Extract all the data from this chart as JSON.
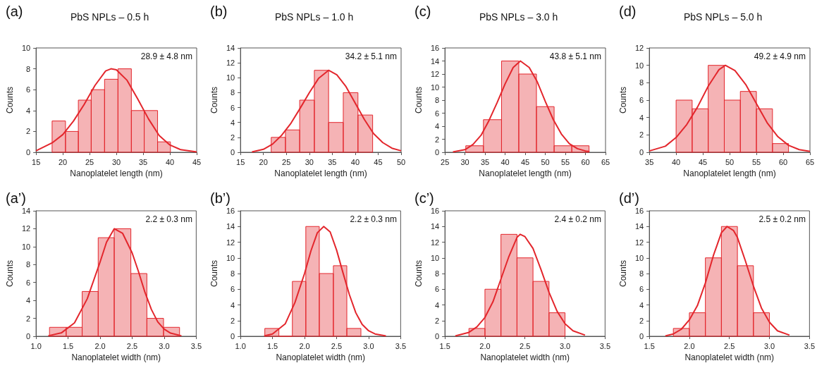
{
  "chart_data": [
    {
      "type": "histogram",
      "title": "PbS NPLs – 0.5 h",
      "xlabel": "Nanoplatelet length (nm)",
      "ylabel": "Counts",
      "annotations": [
        "(a)",
        "28.9 ± 4.8 nm"
      ],
      "color": "#e3262c",
      "bins": [
        18,
        20.5,
        22.9,
        25.3,
        27.8,
        30.3,
        32.8,
        35.2,
        37.7,
        40.1
      ],
      "values": [
        3,
        2,
        5,
        6,
        7,
        8,
        4,
        4,
        1
      ],
      "xlim": [
        15,
        45
      ],
      "xticks": [
        15,
        20,
        25,
        30,
        35,
        40,
        45
      ],
      "ylim": [
        0,
        10
      ],
      "yticks": [
        0,
        2,
        4,
        6,
        8,
        10
      ],
      "series": [
        {
          "type": "line",
          "color": "#e3262c",
          "marker": "none",
          "x": [
            15,
            18,
            20,
            22,
            24,
            26,
            28,
            29,
            30,
            32,
            34,
            36,
            38,
            40,
            42,
            45
          ],
          "values": [
            0.15,
            0.9,
            1.7,
            3.0,
            4.6,
            6.4,
            7.8,
            8,
            7.9,
            6.9,
            5.1,
            3.2,
            1.6,
            0.7,
            0.25,
            0.03
          ]
        }
      ]
    },
    {
      "type": "histogram",
      "title": "PbS NPLs – 1.0 h",
      "xlabel": "Nanoplatelet length (nm)",
      "ylabel": "Counts",
      "annotations": [
        "(b)",
        "34.2 ± 5.1 nm"
      ],
      "color": "#e3262c",
      "bins": [
        21.7,
        24.8,
        27.9,
        31.1,
        34.2,
        37.4,
        40.6,
        43.8
      ],
      "values": [
        2,
        3,
        7,
        11,
        4,
        8,
        5
      ],
      "xlim": [
        15,
        50
      ],
      "xticks": [
        15,
        20,
        25,
        30,
        35,
        40,
        45,
        50
      ],
      "ylim": [
        0,
        14
      ],
      "yticks": [
        0,
        2,
        4,
        6,
        8,
        10,
        12,
        14
      ],
      "series": [
        {
          "type": "line",
          "color": "#e3262c",
          "marker": "none",
          "x": [
            17.5,
            20,
            22,
            24,
            26,
            28,
            30,
            32,
            34.2,
            36,
            38,
            40,
            42,
            44,
            46,
            48,
            50
          ],
          "values": [
            0.05,
            0.4,
            1.1,
            2.3,
            3.9,
            5.9,
            8.0,
            9.9,
            11,
            10.4,
            8.8,
            6.6,
            4.4,
            2.5,
            1.3,
            0.55,
            0.2
          ]
        }
      ]
    },
    {
      "type": "histogram",
      "title": "PbS NPLs – 3.0 h",
      "xlabel": "Nanoplatelet length (nm)",
      "ylabel": "Counts",
      "annotations": [
        "(c)",
        "43.8 ± 5.1 nm"
      ],
      "color": "#e3262c",
      "bins": [
        30.2,
        34.6,
        39.1,
        43.4,
        47.8,
        52.2,
        56.6,
        60.9
      ],
      "values": [
        1,
        5,
        14,
        12,
        7,
        1,
        1
      ],
      "xlim": [
        25,
        65
      ],
      "xticks": [
        25,
        30,
        35,
        40,
        45,
        50,
        55,
        60,
        65
      ],
      "ylim": [
        0,
        16
      ],
      "yticks": [
        0,
        2,
        4,
        6,
        8,
        10,
        12,
        14,
        16
      ],
      "series": [
        {
          "type": "line",
          "color": "#e3262c",
          "marker": "none",
          "x": [
            27,
            30,
            32,
            34,
            36,
            38,
            40,
            42,
            43.8,
            46,
            48,
            50,
            52,
            54,
            56,
            58,
            60,
            61
          ],
          "values": [
            0.05,
            0.4,
            1.2,
            2.6,
            4.9,
            7.6,
            10.5,
            13.0,
            14,
            13.0,
            10.8,
            7.8,
            5.0,
            2.8,
            1.3,
            0.55,
            0.2,
            0.1
          ]
        }
      ]
    },
    {
      "type": "histogram",
      "title": "PbS NPLs – 5.0 h",
      "xlabel": "Nanoplatelet length (nm)",
      "ylabel": "Counts",
      "annotations": [
        "(d)",
        "49.2 ± 4.9 nm"
      ],
      "color": "#e3262c",
      "bins": [
        40,
        43,
        46,
        49,
        52,
        55,
        58,
        61
      ],
      "values": [
        6,
        5,
        10,
        6,
        7,
        5,
        1
      ],
      "xlim": [
        35,
        65
      ],
      "xticks": [
        35,
        40,
        45,
        50,
        55,
        60,
        65
      ],
      "ylim": [
        0,
        12
      ],
      "yticks": [
        0,
        2,
        4,
        6,
        8,
        10,
        12
      ],
      "series": [
        {
          "type": "line",
          "color": "#e3262c",
          "marker": "none",
          "x": [
            35,
            38,
            40,
            42,
            44,
            46,
            48,
            49.2,
            51,
            53,
            55,
            57,
            59,
            61,
            63,
            65
          ],
          "values": [
            0.15,
            0.7,
            1.7,
            3.2,
            5.2,
            7.6,
            9.5,
            10,
            9.4,
            7.8,
            5.6,
            3.4,
            1.8,
            0.8,
            0.3,
            0.1
          ]
        }
      ]
    },
    {
      "type": "histogram",
      "xlabel": "Nanoplatelet width (nm)",
      "ylabel": "Counts",
      "annotations": [
        "(a’)",
        "2.2 ± 0.3 nm"
      ],
      "color": "#e3262c",
      "bins": [
        1.21,
        1.47,
        1.72,
        1.97,
        2.22,
        2.48,
        2.73,
        2.99,
        3.24
      ],
      "values": [
        1,
        1,
        5,
        11,
        12,
        7,
        2,
        1
      ],
      "xlim": [
        1,
        3.5
      ],
      "xticks": [
        {
          "value": 1,
          "label": "1.0"
        },
        1.5,
        {
          "value": 2,
          "label": "2.0"
        },
        2.5,
        {
          "value": 3,
          "label": "3.0"
        },
        3.5
      ],
      "ylim": [
        0,
        14
      ],
      "yticks": [
        0,
        2,
        4,
        6,
        8,
        10,
        12,
        14
      ],
      "series": [
        {
          "type": "line",
          "color": "#e3262c",
          "marker": "none",
          "x": [
            1.19,
            1.4,
            1.6,
            1.8,
            2.0,
            2.1,
            2.22,
            2.35,
            2.5,
            2.6,
            2.7,
            2.8,
            2.9,
            3.0,
            3.1,
            3.27
          ],
          "values": [
            0.05,
            0.4,
            1.5,
            4.2,
            8.3,
            10.5,
            12,
            11.5,
            9.3,
            7.2,
            4.9,
            3.0,
            1.6,
            0.8,
            0.35,
            0.05
          ]
        }
      ]
    },
    {
      "type": "histogram",
      "xlabel": "Nanoplatelet width (nm)",
      "ylabel": "Counts",
      "annotations": [
        "(b’)",
        "2.2 ± 0.3 nm"
      ],
      "color": "#e3262c",
      "bins": [
        1.38,
        1.6,
        1.81,
        2.02,
        2.23,
        2.45,
        2.66,
        2.88
      ],
      "values": [
        1,
        0,
        7,
        14,
        8,
        9,
        1
      ],
      "xlim": [
        1,
        3.5
      ],
      "xticks": [
        {
          "value": 1,
          "label": "1.0"
        },
        1.5,
        {
          "value": 2,
          "label": "2.0"
        },
        2.5,
        {
          "value": 3,
          "label": "3.0"
        },
        3.5
      ],
      "ylim": [
        0,
        16
      ],
      "yticks": [
        0,
        2,
        4,
        6,
        8,
        10,
        12,
        14,
        16
      ],
      "series": [
        {
          "type": "line",
          "color": "#e3262c",
          "marker": "none",
          "x": [
            1.37,
            1.5,
            1.7,
            1.85,
            2.0,
            2.1,
            2.2,
            2.3,
            2.4,
            2.5,
            2.6,
            2.7,
            2.8,
            2.9,
            3.0,
            3.1,
            3.27
          ],
          "values": [
            0.05,
            0.3,
            1.6,
            4.3,
            8.0,
            10.9,
            13.2,
            14,
            13.3,
            11.0,
            8.1,
            5.3,
            3.0,
            1.5,
            0.7,
            0.3,
            0.05
          ]
        }
      ]
    },
    {
      "type": "histogram",
      "xlabel": "Nanoplatelet width (nm)",
      "ylabel": "Counts",
      "annotations": [
        "(c’)",
        "2.4 ± 0.2 nm"
      ],
      "color": "#e3262c",
      "bins": [
        1.8,
        2.0,
        2.2,
        2.4,
        2.6,
        2.8,
        3.0
      ],
      "values": [
        1,
        6,
        13,
        10,
        7,
        3
      ],
      "xlim": [
        1.5,
        3.5
      ],
      "xticks": [
        1.5,
        {
          "value": 2,
          "label": "2.0"
        },
        2.5,
        {
          "value": 3,
          "label": "3.0"
        },
        3.5
      ],
      "ylim": [
        0,
        16
      ],
      "yticks": [
        0,
        2,
        4,
        6,
        8,
        10,
        12,
        14,
        16
      ],
      "series": [
        {
          "type": "line",
          "color": "#e3262c",
          "marker": "none",
          "x": [
            1.63,
            1.8,
            1.9,
            2.0,
            2.1,
            2.2,
            2.3,
            2.4,
            2.44,
            2.5,
            2.6,
            2.7,
            2.8,
            2.9,
            3.0,
            3.1,
            3.25
          ],
          "values": [
            0.05,
            0.5,
            1.2,
            2.4,
            4.4,
            7.3,
            10.2,
            12.6,
            13,
            12.7,
            11.2,
            8.5,
            5.6,
            3.2,
            1.6,
            0.7,
            0.15
          ]
        }
      ]
    },
    {
      "type": "histogram",
      "xlabel": "Nanoplatelet width (nm)",
      "ylabel": "Counts",
      "annotations": [
        "(d’)",
        "2.5 ± 0.2 nm"
      ],
      "color": "#e3262c",
      "bins": [
        1.8,
        2.0,
        2.2,
        2.4,
        2.6,
        2.8,
        3.0
      ],
      "values": [
        1,
        3,
        10,
        14,
        9,
        3
      ],
      "xlim": [
        1.5,
        3.5
      ],
      "xticks": [
        1.5,
        {
          "value": 2,
          "label": "2.0"
        },
        2.5,
        {
          "value": 3,
          "label": "3.0"
        },
        3.5
      ],
      "ylim": [
        0,
        16
      ],
      "yticks": [
        0,
        2,
        4,
        6,
        8,
        10,
        12,
        14,
        16
      ],
      "series": [
        {
          "type": "line",
          "color": "#e3262c",
          "marker": "none",
          "x": [
            1.7,
            1.8,
            1.9,
            2.0,
            2.1,
            2.2,
            2.3,
            2.4,
            2.47,
            2.55,
            2.6,
            2.7,
            2.8,
            2.9,
            3.0,
            3.1,
            3.25
          ],
          "values": [
            0.05,
            0.3,
            0.9,
            2.1,
            3.9,
            6.8,
            10.3,
            13.2,
            14,
            13.5,
            12.6,
            9.6,
            6.4,
            3.6,
            1.8,
            0.7,
            0.15
          ]
        }
      ]
    }
  ]
}
